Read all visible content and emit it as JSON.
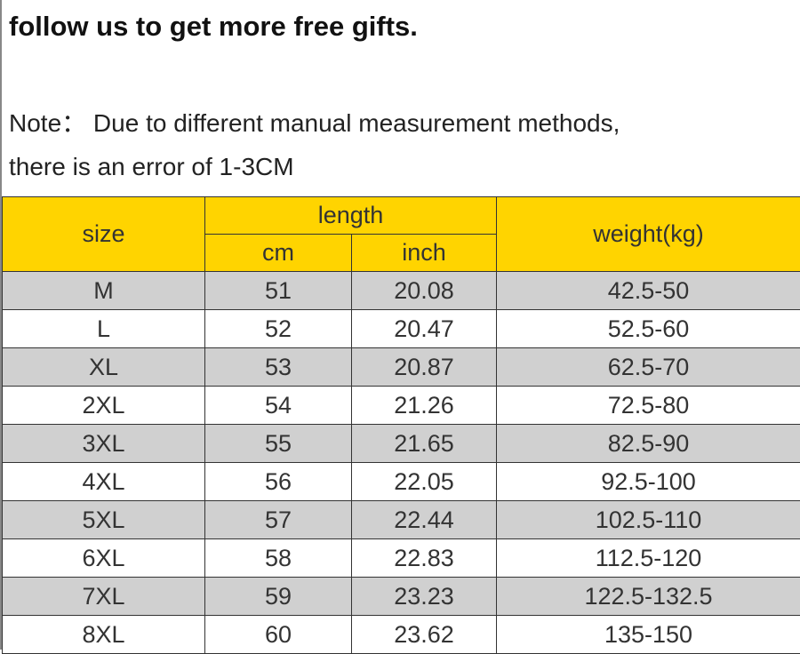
{
  "header": {
    "title": "follow us to get more free gifts."
  },
  "note": {
    "lines": [
      "Note： Due to different manual measurement methods,",
      "there is an error of 1-3CM"
    ]
  },
  "table": {
    "headers": {
      "size": "size",
      "length": "length",
      "cm": "cm",
      "inch": "inch",
      "weight": "weight(kg)"
    },
    "rows": [
      [
        "M",
        "51",
        "20.08",
        "42.5-50"
      ],
      [
        "L",
        "52",
        "20.47",
        "52.5-60"
      ],
      [
        "XL",
        "53",
        "20.87",
        "62.5-70"
      ],
      [
        "2XL",
        "54",
        "21.26",
        "72.5-80"
      ],
      [
        "3XL",
        "55",
        "21.65",
        "82.5-90"
      ],
      [
        "4XL",
        "56",
        "22.05",
        "92.5-100"
      ],
      [
        "5XL",
        "57",
        "22.44",
        "102.5-110"
      ],
      [
        "6XL",
        "58",
        "22.83",
        "112.5-120"
      ],
      [
        "7XL",
        "59",
        "23.23",
        "122.5-132.5"
      ],
      [
        "8XL",
        "60",
        "23.62",
        "135-150"
      ]
    ]
  }
}
